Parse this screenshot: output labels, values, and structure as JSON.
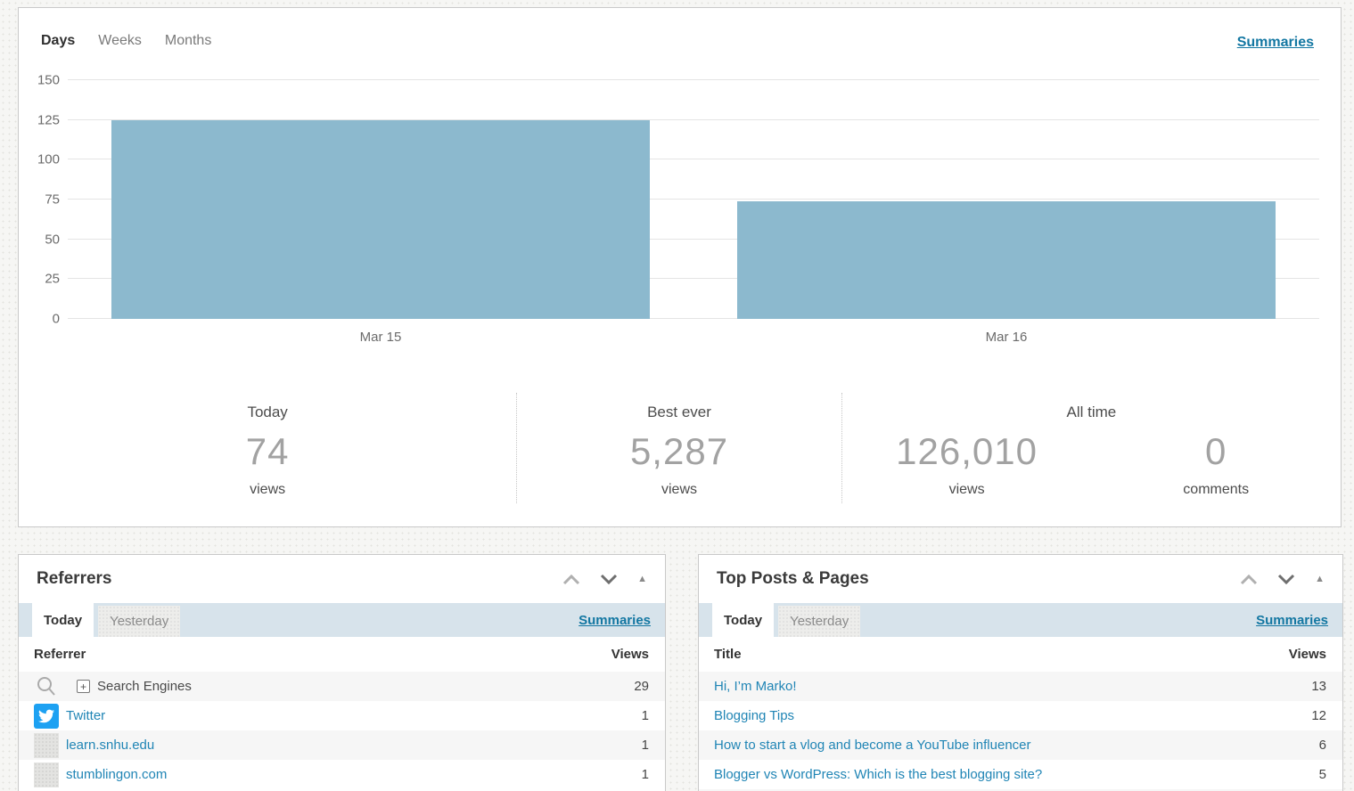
{
  "colors": {
    "bar": "#8cb9ce",
    "link": "#2085b5",
    "summaries_link": "#1377a2",
    "tab_bar_bg": "#d7e3eb",
    "twitter_blue": "#1da1f2",
    "alt_row_bg": "#f6f6f6"
  },
  "icons": {
    "move_up": "chevron-up-icon",
    "move_down": "chevron-down-icon",
    "collapse": "triangle-collapse-icon",
    "search": "magnifier-icon",
    "expand": "plus-box-icon",
    "twitter": "twitter-bird-icon",
    "generic": "placeholder-icon"
  },
  "chart_panel": {
    "tabs": [
      {
        "label": "Days",
        "active": true
      },
      {
        "label": "Weeks",
        "active": false
      },
      {
        "label": "Months",
        "active": false
      }
    ],
    "summaries_label": "Summaries",
    "chart_data": {
      "type": "bar",
      "categories": [
        "Mar 15",
        "Mar 16"
      ],
      "values": [
        125,
        74
      ],
      "title": "",
      "xlabel": "",
      "ylabel": "",
      "ylim": [
        0,
        150
      ],
      "yticks": [
        150,
        125,
        100,
        75,
        50,
        25,
        0
      ],
      "bar_color": "#8cb9ce",
      "grid": true,
      "legend": "none"
    },
    "summary": {
      "today": {
        "label": "Today",
        "value": "74",
        "unit": "views"
      },
      "best_ever": {
        "label": "Best ever",
        "value": "5,287",
        "unit": "views"
      },
      "all_time": {
        "label": "All time",
        "views": {
          "value": "126,010",
          "unit": "views"
        },
        "comments": {
          "value": "0",
          "unit": "comments"
        }
      }
    }
  },
  "referrers": {
    "title": "Referrers",
    "tabs": [
      {
        "label": "Today",
        "active": true
      },
      {
        "label": "Yesterday",
        "active": false
      }
    ],
    "summaries_label": "Summaries",
    "columns": {
      "name": "Referrer",
      "views": "Views"
    },
    "rows": [
      {
        "label": "Search Engines",
        "views": "29",
        "icon": "magnifier-icon",
        "expandable": true,
        "is_link": false
      },
      {
        "label": "Twitter",
        "views": "1",
        "icon": "twitter-bird-icon",
        "expandable": false,
        "is_link": true
      },
      {
        "label": "learn.snhu.edu",
        "views": "1",
        "icon": "placeholder-icon",
        "expandable": false,
        "is_link": true
      },
      {
        "label": "stumblingon.com",
        "views": "1",
        "icon": "placeholder-icon",
        "expandable": false,
        "is_link": true
      }
    ]
  },
  "top_posts": {
    "title": "Top Posts & Pages",
    "tabs": [
      {
        "label": "Today",
        "active": true
      },
      {
        "label": "Yesterday",
        "active": false
      }
    ],
    "summaries_label": "Summaries",
    "columns": {
      "name": "Title",
      "views": "Views"
    },
    "rows": [
      {
        "label": "Hi, I’m Marko!",
        "views": "13"
      },
      {
        "label": "Blogging Tips",
        "views": "12"
      },
      {
        "label": "How to start a vlog and become a YouTube influencer",
        "views": "6"
      },
      {
        "label": "Blogger vs WordPress: Which is the best blogging site?",
        "views": "5"
      }
    ]
  }
}
